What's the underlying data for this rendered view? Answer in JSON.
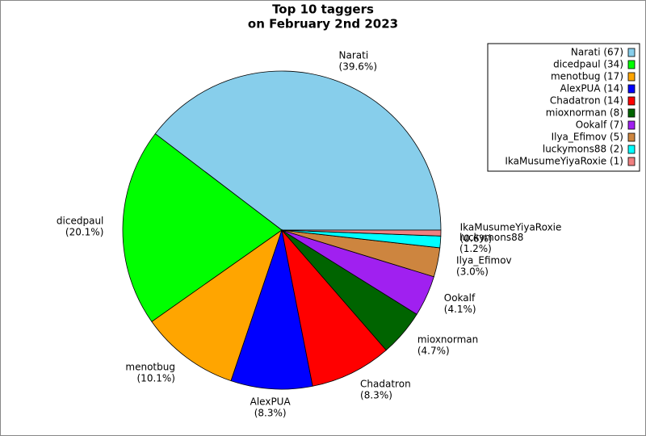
{
  "chart_data": {
    "type": "pie",
    "title": "Top 10 taggers",
    "subtitle": "on February 2nd 2023",
    "categories": [
      "Narati",
      "dicedpaul",
      "menotbug",
      "AlexPUA",
      "Chadatron",
      "mioxnorman",
      "Ookalf",
      "Ilya_Efimov",
      "luckymons88",
      "IkaMusumeYiyaRoxie"
    ],
    "values": [
      67,
      34,
      17,
      14,
      14,
      8,
      7,
      5,
      2,
      1
    ],
    "value_labels": [
      "(39.6%)",
      "(20.1%)",
      "(10.1%)",
      "(8.3%)",
      "(8.3%)",
      "(4.7%)",
      "(4.1%)",
      "(3.0%)",
      "(1.2%)",
      "(0.6%)"
    ],
    "legend_labels": [
      "Narati (67)",
      "dicedpaul (34)",
      "menotbug (17)",
      "AlexPUA (14)",
      "Chadatron (14)",
      "mioxnorman (8)",
      "Ookalf (7)",
      "Ilya_Efimov (5)",
      "luckymons88 (2)",
      "IkaMusumeYiyaRoxie (1)"
    ],
    "colors": [
      "#87ceeb",
      "#00ff00",
      "#ffa500",
      "#0000ff",
      "#ff0000",
      "#006400",
      "#a020f0",
      "#cd853f",
      "#00ffff",
      "#f08080"
    ],
    "legend": "upper right"
  }
}
